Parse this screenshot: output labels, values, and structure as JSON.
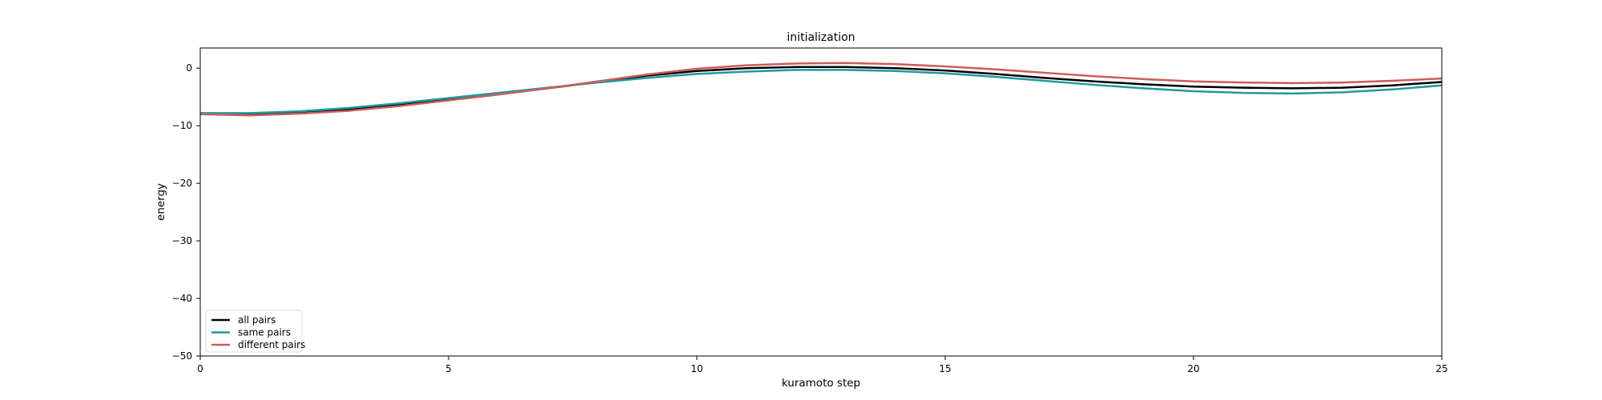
{
  "chart_data": {
    "type": "line",
    "title": "initialization",
    "xlabel": "kuramoto step",
    "ylabel": "energy",
    "xlim": [
      0,
      25
    ],
    "ylim": [
      -50,
      3.5
    ],
    "xticks": [
      0,
      5,
      10,
      15,
      20,
      25
    ],
    "yticks": [
      0,
      -10,
      -20,
      -30,
      -40,
      -50
    ],
    "grid": false,
    "legend_position": "lower-left",
    "series": [
      {
        "name": "all pairs",
        "color": "#000000",
        "x": [
          0,
          1,
          2,
          3,
          4,
          5,
          6,
          7,
          8,
          9,
          10,
          11,
          12,
          13,
          14,
          15,
          16,
          17,
          18,
          19,
          20,
          21,
          22,
          23,
          24,
          25
        ],
        "y": [
          -7.9,
          -8.0,
          -7.7,
          -7.2,
          -6.4,
          -5.5,
          -4.5,
          -3.5,
          -2.4,
          -1.3,
          -0.5,
          0.0,
          0.2,
          0.2,
          0.0,
          -0.4,
          -1.0,
          -1.7,
          -2.3,
          -2.8,
          -3.2,
          -3.4,
          -3.5,
          -3.4,
          -3.0,
          -2.4
        ]
      },
      {
        "name": "same pairs",
        "color": "#1f9a9e",
        "x": [
          0,
          1,
          2,
          3,
          4,
          5,
          6,
          7,
          8,
          9,
          10,
          11,
          12,
          13,
          14,
          15,
          16,
          17,
          18,
          19,
          20,
          21,
          22,
          23,
          24,
          25
        ],
        "y": [
          -7.8,
          -7.8,
          -7.5,
          -6.9,
          -6.1,
          -5.2,
          -4.3,
          -3.4,
          -2.5,
          -1.7,
          -1.0,
          -0.6,
          -0.3,
          -0.3,
          -0.5,
          -0.9,
          -1.5,
          -2.2,
          -2.9,
          -3.5,
          -4.0,
          -4.3,
          -4.4,
          -4.2,
          -3.7,
          -3.0
        ]
      },
      {
        "name": "different pairs",
        "color": "#cd5c5c",
        "x": [
          0,
          1,
          2,
          3,
          4,
          5,
          6,
          7,
          8,
          9,
          10,
          11,
          12,
          13,
          14,
          15,
          16,
          17,
          18,
          19,
          20,
          21,
          22,
          23,
          24,
          25
        ],
        "y": [
          -8.0,
          -8.2,
          -7.9,
          -7.4,
          -6.6,
          -5.6,
          -4.6,
          -3.5,
          -2.3,
          -1.1,
          -0.1,
          0.5,
          0.8,
          0.9,
          0.7,
          0.3,
          -0.2,
          -0.8,
          -1.4,
          -1.9,
          -2.3,
          -2.5,
          -2.6,
          -2.5,
          -2.2,
          -1.8
        ]
      }
    ]
  }
}
